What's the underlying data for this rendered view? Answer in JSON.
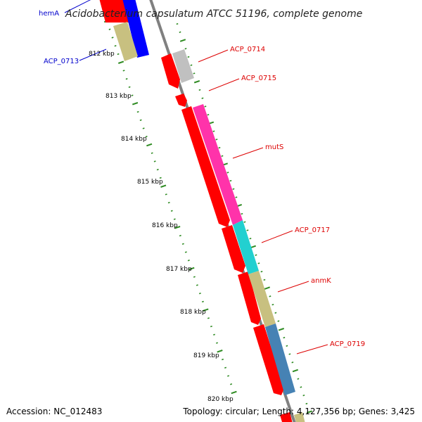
{
  "title": "Acidobacterium capsulatum ATCC 51196, complete genome",
  "footer": {
    "accession": "Accession: NC_012483",
    "topology": "Topology: circular; Length: 4,127,356 bp; Genes: 3,425"
  },
  "ticks": [
    "812 kbp",
    "813 kbp",
    "814 kbp",
    "815 kbp",
    "816 kbp",
    "817 kbp",
    "818 kbp",
    "819 kbp",
    "820 kbp"
  ],
  "labels": [
    {
      "text": "hemA",
      "color": "#0000cc"
    },
    {
      "text": "ACP_0713",
      "color": "#0000cc"
    },
    {
      "text": "ACP_0714",
      "color": "#dd0000"
    },
    {
      "text": "ACP_0715",
      "color": "#dd0000"
    },
    {
      "text": "mutS",
      "color": "#dd0000"
    },
    {
      "text": "ACP_0717",
      "color": "#dd0000"
    },
    {
      "text": "anmK",
      "color": "#dd0000"
    },
    {
      "text": "ACP_0719",
      "color": "#dd0000"
    }
  ],
  "colors": {
    "cds_forward": "#ff0000",
    "gene_blue": "#0000ff",
    "gene_khaki": "#c8c080",
    "gene_magenta": "#ff33aa",
    "gene_cyan": "#22d0d0",
    "gene_steelblue": "#4682b4",
    "gene_grey": "#c0c0c0",
    "backbone": "#808080",
    "ticks": "#2e8b22"
  }
}
